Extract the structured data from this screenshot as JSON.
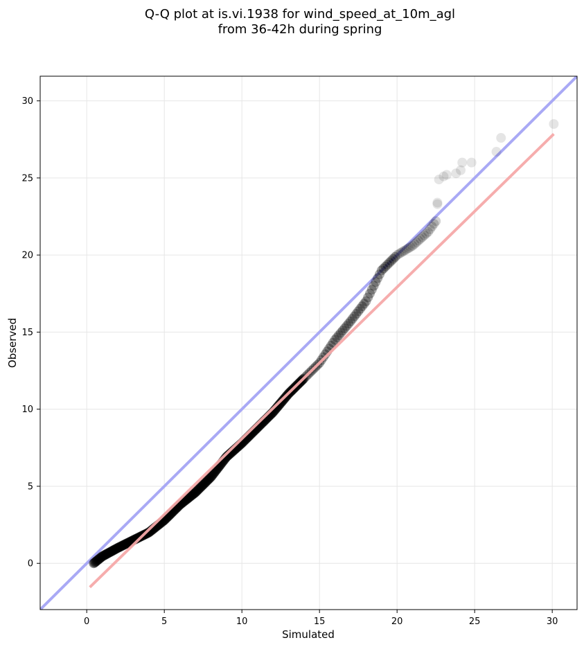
{
  "chart_data": {
    "type": "scatter",
    "title_lines": [
      "Q-Q plot at is.vi.1938 for wind_speed_at_10m_agl",
      "from 36-42h during spring"
    ],
    "xlabel": "Simulated",
    "ylabel": "Observed",
    "xlim": [
      -3,
      31.6
    ],
    "ylim": [
      -3,
      31.6
    ],
    "xticks": [
      0,
      5,
      10,
      15,
      20,
      25,
      30
    ],
    "yticks": [
      0,
      5,
      10,
      15,
      20,
      25,
      30
    ],
    "grid": true,
    "colors": {
      "points": "#000000",
      "identity_line": "#a9a9f5",
      "fit_line": "#f5a9a9"
    },
    "identity_line": {
      "x": [
        -3,
        31.6
      ],
      "y": [
        -3,
        31.6
      ]
    },
    "fit_line": {
      "x": [
        0.2,
        30.1
      ],
      "y": [
        -1.55,
        27.85
      ]
    },
    "quantile_anchors": {
      "x": [
        0.45,
        1.0,
        2.0,
        3.0,
        4.0,
        5.0,
        6.0,
        7.0,
        8.0,
        9.0,
        10.0,
        11.0,
        12.0,
        13.0,
        14.0,
        15.0,
        16.0,
        17.0,
        18.0,
        19.0,
        20.0,
        21.0,
        22.0,
        22.5
      ],
      "y": [
        0.0,
        0.45,
        1.0,
        1.5,
        2.0,
        2.8,
        3.8,
        4.6,
        5.6,
        6.9,
        7.8,
        8.8,
        9.8,
        11.0,
        12.0,
        13.0,
        14.5,
        15.7,
        17.0,
        19.0,
        20.0,
        20.6,
        21.5,
        22.2
      ]
    },
    "tail_points": {
      "x": [
        22.6,
        22.6,
        22.7,
        23.0,
        23.2,
        23.8,
        24.1,
        24.2,
        24.8,
        26.4,
        26.7,
        30.1
      ],
      "y": [
        23.3,
        23.4,
        24.9,
        25.1,
        25.2,
        25.3,
        25.5,
        26.0,
        26.0,
        26.7,
        27.6,
        28.5
      ]
    }
  }
}
